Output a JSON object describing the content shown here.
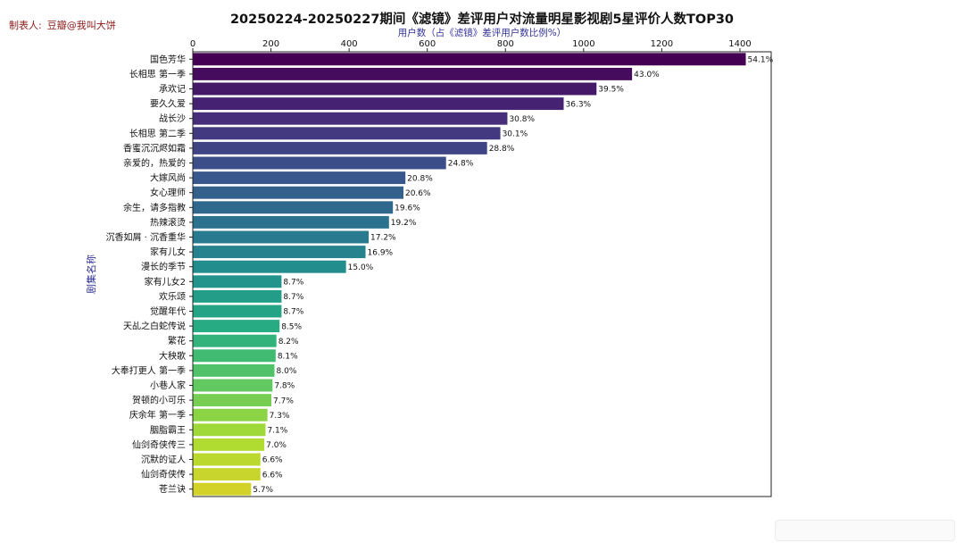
{
  "credit": {
    "label": "制表人:",
    "value": "豆瓣@我叫大饼"
  },
  "chart_data": {
    "type": "bar",
    "orientation": "horizontal",
    "title": "20250224-20250227期间《滤镜》差评用户对流量明星影视剧5星评价人数TOP30",
    "xlabel": "用户数（占《滤镜》差评用户数比例%）",
    "ylabel": "剧集名称",
    "xlim": [
      0,
      1480
    ],
    "xticks": [
      0,
      200,
      400,
      600,
      800,
      1000,
      1200,
      1400
    ],
    "x_axis_position": "top",
    "grid": false,
    "categories": [
      "国色芳华",
      "长相思 第一季",
      "承欢记",
      "要久久爱",
      "战长沙",
      "长相思 第二季",
      "香蜜沉沉烬如霜",
      "亲爱的，热爱的",
      "大嫁风尚",
      "女心理师",
      "余生，请多指教",
      "热辣滚烫",
      "沉香如屑 · 沉香重华",
      "家有儿女",
      "漫长的季节",
      "家有儿女2",
      "欢乐颂",
      "觉醒年代",
      "天乩之白蛇传说",
      "繁花",
      "大秧歌",
      "大奉打更人 第一季",
      "小巷人家",
      "贺顿的小可乐",
      "庆余年 第一季",
      "胭脂霸王",
      "仙剑奇侠传三",
      "沉默的证人",
      "仙剑奇侠传",
      "苍兰诀"
    ],
    "values": [
      1415,
      1124,
      1033,
      949,
      805,
      787,
      753,
      648,
      544,
      539,
      512,
      502,
      450,
      442,
      392,
      227,
      227,
      227,
      222,
      214,
      212,
      209,
      204,
      201,
      191,
      186,
      183,
      173,
      173,
      149
    ],
    "data_labels": [
      "54.1%",
      "43.0%",
      "39.5%",
      "36.3%",
      "30.8%",
      "30.1%",
      "28.8%",
      "24.8%",
      "20.8%",
      "20.6%",
      "19.6%",
      "19.2%",
      "17.2%",
      "16.9%",
      "15.0%",
      "8.7%",
      "8.7%",
      "8.7%",
      "8.5%",
      "8.2%",
      "8.1%",
      "8.0%",
      "7.8%",
      "7.7%",
      "7.3%",
      "7.1%",
      "7.0%",
      "6.6%",
      "6.6%",
      "5.7%"
    ],
    "colormap": "viridis",
    "color_start": "#440154",
    "color_end": "#d2d229"
  }
}
